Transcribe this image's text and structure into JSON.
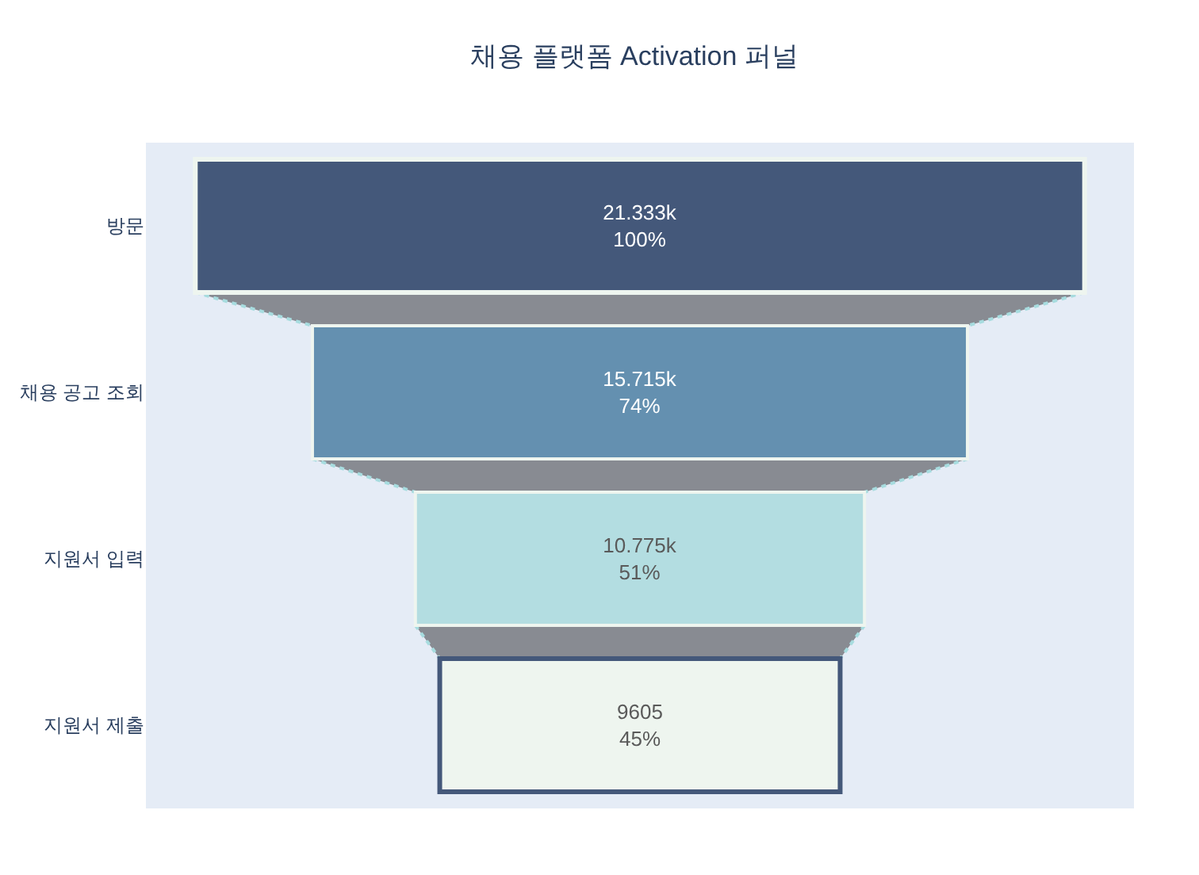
{
  "chart_data": {
    "type": "other",
    "title": "채용 플랫폼 Activation 퍼널",
    "categories": [
      "방문",
      "채용 공고 조회",
      "지원서 입력",
      "지원서 제출"
    ],
    "values": [
      21333,
      15715,
      10775,
      9605
    ],
    "value_labels": [
      "21.333k\n100%",
      "15.715k\n74%",
      "10.775k\n51%",
      "9605\n45%"
    ],
    "colors": [
      "#44587a",
      "#6490b0",
      "#b3dde1",
      "#eef5ef"
    ]
  }
}
